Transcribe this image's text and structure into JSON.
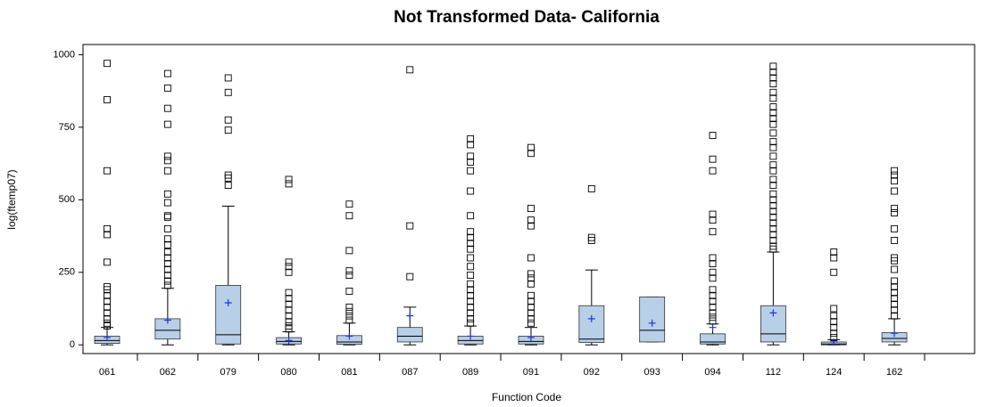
{
  "chart_data": {
    "type": "box",
    "title": "Not Transformed Data- California",
    "x_label": "Function Code",
    "y_label": "log(ftemp07)",
    "categories": [
      "061",
      "062",
      "079",
      "080",
      "081",
      "087",
      "089",
      "091",
      "092",
      "093",
      "094",
      "112",
      "124",
      "162"
    ],
    "ylim": [
      -30,
      1035
    ],
    "yticks": [
      0,
      250,
      500,
      750,
      1000
    ],
    "color": "#b8cfe8",
    "mean_color": "#2233dd",
    "boxes": [
      {
        "min": 0,
        "q1": 5,
        "median": 15,
        "q3": 30,
        "max": 60,
        "mean": 25,
        "outliers": [
          970,
          845,
          600,
          400,
          380,
          285,
          200,
          190,
          170,
          150,
          130,
          110,
          90,
          75,
          65
        ]
      },
      {
        "min": 0,
        "q1": 20,
        "median": 50,
        "q3": 90,
        "max": 195,
        "mean": 85,
        "outliers": [
          935,
          885,
          815,
          760,
          650,
          635,
          600,
          520,
          490,
          445,
          440,
          400,
          365,
          345,
          320,
          300,
          280,
          260,
          240,
          220,
          205
        ]
      },
      {
        "min": 0,
        "q1": 3,
        "median": 35,
        "q3": 205,
        "max": 478,
        "mean": 145,
        "outliers": [
          920,
          870,
          775,
          740,
          585,
          575,
          550
        ]
      },
      {
        "min": 0,
        "q1": 3,
        "median": 12,
        "q3": 25,
        "max": 45,
        "mean": 15,
        "outliers": [
          570,
          555,
          285,
          270,
          250,
          180,
          160,
          140,
          120,
          100,
          80,
          65,
          55
        ]
      },
      {
        "min": 0,
        "q1": 2,
        "median": 10,
        "q3": 32,
        "max": 75,
        "mean": 30,
        "outliers": [
          485,
          445,
          325,
          255,
          240,
          185,
          130,
          115,
          100,
          85
        ]
      },
      {
        "min": 0,
        "q1": 10,
        "median": 30,
        "q3": 60,
        "max": 130,
        "mean": 100,
        "outliers": [
          948,
          410,
          235
        ]
      },
      {
        "min": 0,
        "q1": 3,
        "median": 15,
        "q3": 30,
        "max": 65,
        "mean": 30,
        "outliers": [
          710,
          690,
          650,
          630,
          600,
          530,
          445,
          390,
          370,
          350,
          330,
          300,
          270,
          240,
          210,
          190,
          170,
          150,
          130,
          110,
          90,
          75
        ]
      },
      {
        "min": 0,
        "q1": 3,
        "median": 12,
        "q3": 30,
        "max": 60,
        "mean": 25,
        "outliers": [
          680,
          660,
          470,
          430,
          410,
          300,
          245,
          230,
          210,
          170,
          150,
          130,
          110,
          90,
          75
        ]
      },
      {
        "min": 0,
        "q1": 8,
        "median": 20,
        "q3": 135,
        "max": 258,
        "mean": 90,
        "outliers": [
          538,
          370,
          360
        ]
      },
      {
        "min": 10,
        "q1": 10,
        "median": 50,
        "q3": 165,
        "max": 165,
        "mean": 75,
        "outliers": []
      },
      {
        "min": 0,
        "q1": 3,
        "median": 10,
        "q3": 38,
        "max": 72,
        "mean": 60,
        "outliers": [
          722,
          640,
          600,
          450,
          430,
          390,
          300,
          280,
          250,
          230,
          190,
          170,
          150,
          130,
          110,
          95,
          82
        ]
      },
      {
        "min": 0,
        "q1": 10,
        "median": 38,
        "q3": 135,
        "max": 320,
        "mean": 110,
        "outliers": [
          960,
          940,
          920,
          900,
          870,
          850,
          820,
          800,
          780,
          760,
          730,
          700,
          680,
          650,
          620,
          600,
          570,
          550,
          520,
          500,
          480,
          460,
          440,
          420,
          400,
          380,
          360,
          340,
          330
        ]
      },
      {
        "min": 0,
        "q1": 0,
        "median": 3,
        "q3": 10,
        "max": 18,
        "mean": 10,
        "outliers": [
          320,
          300,
          250,
          125,
          100,
          80,
          60,
          40,
          25
        ]
      },
      {
        "min": 0,
        "q1": 10,
        "median": 22,
        "q3": 42,
        "max": 90,
        "mean": 40,
        "outliers": [
          600,
          585,
          565,
          530,
          470,
          455,
          400,
          360,
          300,
          290,
          260,
          220,
          200,
          180,
          160,
          140,
          120,
          100
        ]
      }
    ]
  }
}
